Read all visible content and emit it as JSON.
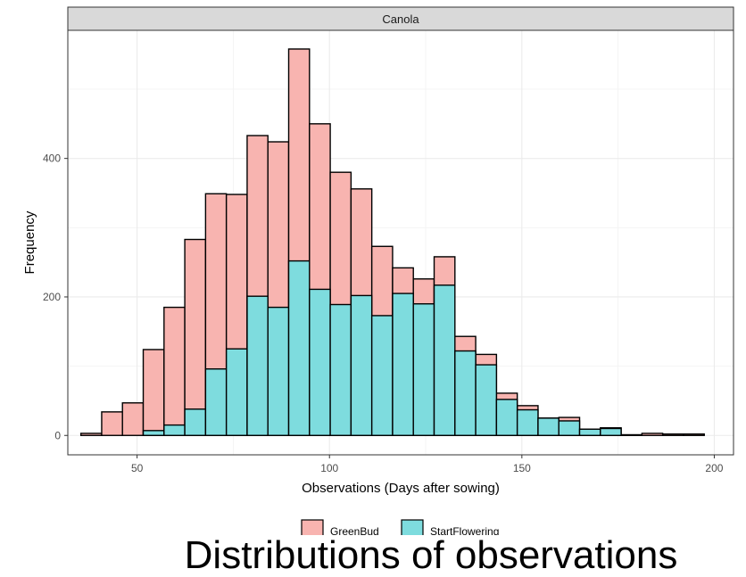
{
  "chart_data": {
    "type": "bar",
    "facet": "Canola",
    "xlabel": "Observations (Days after sowing)",
    "ylabel": "Frequency",
    "xlim": [
      32,
      205
    ],
    "ylim": [
      -28,
      585
    ],
    "xticks": [
      50,
      100,
      150,
      200
    ],
    "yticks": [
      0,
      200,
      400
    ],
    "grid": true,
    "legend_position": "bottom",
    "bin_width": 5.4,
    "bin_start": 35.4,
    "series": [
      {
        "name": "GreenBud",
        "color": "#f8b4b0",
        "values": [
          3,
          34,
          47,
          124,
          185,
          283,
          349,
          348,
          433,
          424,
          558,
          450,
          380,
          356,
          273,
          242,
          226,
          258,
          143,
          117,
          61,
          43,
          25,
          26,
          9,
          11,
          1,
          3,
          2,
          2
        ]
      },
      {
        "name": "StartFlowering",
        "color": "#7edcde",
        "values": [
          0,
          0,
          0,
          7,
          15,
          38,
          96,
          125,
          201,
          185,
          252,
          211,
          189,
          202,
          173,
          205,
          190,
          217,
          122,
          102,
          52,
          37,
          25,
          21,
          9,
          10,
          0,
          0,
          0,
          0
        ]
      }
    ]
  },
  "caption": "Distributions of observations"
}
